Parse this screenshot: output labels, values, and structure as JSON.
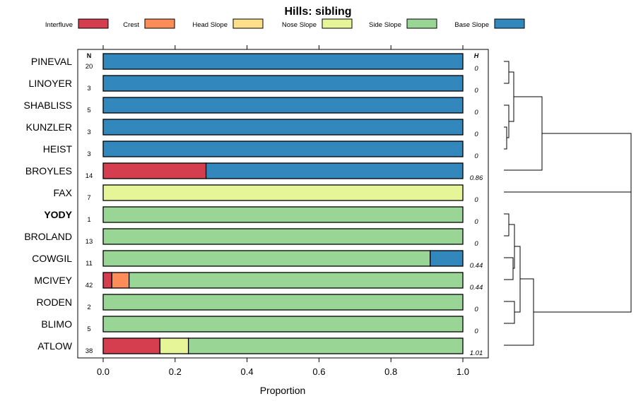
{
  "chart_data": {
    "type": "bar",
    "orientation": "horizontal-stacked",
    "title": "Hills: sibling",
    "xlabel": "Proportion",
    "xlim": [
      0,
      1
    ],
    "x_ticks": [
      "0.0",
      "0.2",
      "0.4",
      "0.6",
      "0.8",
      "1.0"
    ],
    "n_header": "N",
    "h_header": "H",
    "legend": [
      {
        "name": "Interfluve",
        "color": "#D53E4F"
      },
      {
        "name": "Crest",
        "color": "#FC8D59"
      },
      {
        "name": "Head Slope",
        "color": "#FEE08B"
      },
      {
        "name": "Nose Slope",
        "color": "#E6F598"
      },
      {
        "name": "Side Slope",
        "color": "#99D594"
      },
      {
        "name": "Base Slope",
        "color": "#3288BD"
      }
    ],
    "rows": [
      {
        "label": "PINEVAL",
        "n": "20",
        "h": "0",
        "bold": false,
        "values": [
          0,
          0,
          0,
          0,
          0,
          1
        ]
      },
      {
        "label": "LINOYER",
        "n": "3",
        "h": "0",
        "bold": false,
        "values": [
          0,
          0,
          0,
          0,
          0,
          1
        ]
      },
      {
        "label": "SHABLISS",
        "n": "5",
        "h": "0",
        "bold": false,
        "values": [
          0,
          0,
          0,
          0,
          0,
          1
        ]
      },
      {
        "label": "KUNZLER",
        "n": "3",
        "h": "0",
        "bold": false,
        "values": [
          0,
          0,
          0,
          0,
          0,
          1
        ]
      },
      {
        "label": "HEIST",
        "n": "3",
        "h": "0",
        "bold": false,
        "values": [
          0,
          0,
          0,
          0,
          0,
          1
        ]
      },
      {
        "label": "BROYLES",
        "n": "14",
        "h": "0.86",
        "bold": false,
        "values": [
          0.286,
          0,
          0,
          0,
          0,
          0.714
        ]
      },
      {
        "label": "FAX",
        "n": "7",
        "h": "0",
        "bold": false,
        "values": [
          0,
          0,
          0,
          1,
          0,
          0
        ]
      },
      {
        "label": "YODY",
        "n": "1",
        "h": "0",
        "bold": true,
        "values": [
          0,
          0,
          0,
          0,
          1,
          0
        ]
      },
      {
        "label": "BROLAND",
        "n": "13",
        "h": "0",
        "bold": false,
        "values": [
          0,
          0,
          0,
          0,
          1,
          0
        ]
      },
      {
        "label": "COWGIL",
        "n": "11",
        "h": "0.44",
        "bold": false,
        "values": [
          0,
          0,
          0,
          0,
          0.909,
          0.091
        ]
      },
      {
        "label": "MCIVEY",
        "n": "42",
        "h": "0.44",
        "bold": false,
        "values": [
          0.024,
          0.048,
          0,
          0,
          0.928,
          0
        ]
      },
      {
        "label": "RODEN",
        "n": "2",
        "h": "0",
        "bold": false,
        "values": [
          0,
          0,
          0,
          0,
          1,
          0
        ]
      },
      {
        "label": "BLIMO",
        "n": "5",
        "h": "0",
        "bold": false,
        "values": [
          0,
          0,
          0,
          0,
          1,
          0
        ]
      },
      {
        "label": "ATLOW",
        "n": "38",
        "h": "1.01",
        "bold": false,
        "values": [
          0.158,
          0,
          0,
          0.079,
          0.763,
          0
        ]
      }
    ]
  }
}
